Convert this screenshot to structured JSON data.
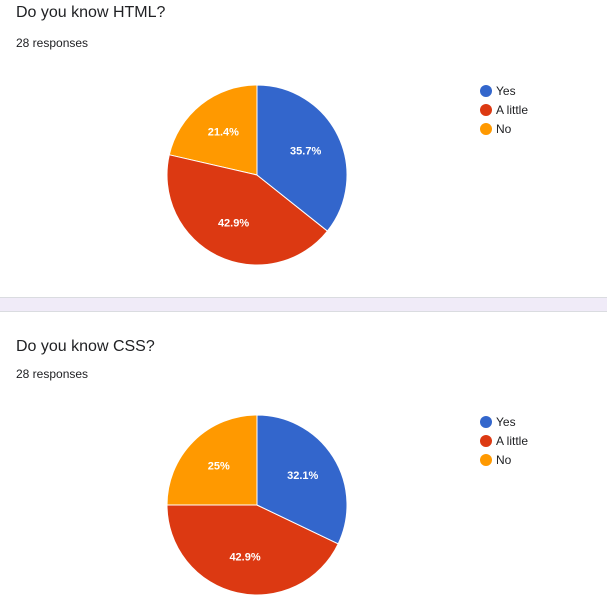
{
  "chart_data": [
    {
      "type": "pie",
      "title": "Do you know HTML?",
      "subtitle": "28 responses",
      "colors": [
        "#3366cc",
        "#dc3912",
        "#ff9900"
      ],
      "legend_position": "right",
      "labels": [
        "Yes",
        "A little",
        "No"
      ],
      "values": [
        35.7,
        42.9,
        21.4
      ],
      "data_labels": [
        "35.7%",
        "42.9%",
        "21.4%"
      ]
    },
    {
      "type": "pie",
      "title": "Do you know CSS?",
      "subtitle": "28 responses",
      "colors": [
        "#3366cc",
        "#dc3912",
        "#ff9900"
      ],
      "legend_position": "right",
      "labels": [
        "Yes",
        "A little",
        "No"
      ],
      "values": [
        32.1,
        42.9,
        25
      ],
      "data_labels": [
        "32.1%",
        "42.9%",
        "25%"
      ]
    }
  ]
}
